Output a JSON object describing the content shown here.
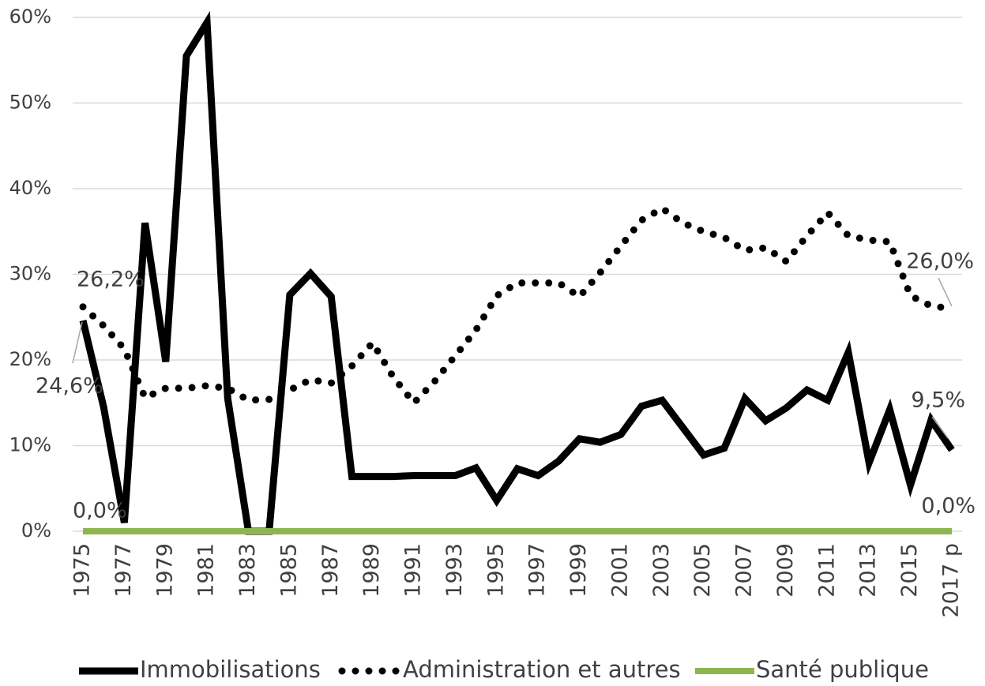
{
  "chart_data": {
    "type": "line",
    "categories": [
      "1975",
      null,
      "1977",
      null,
      "1979",
      null,
      "1981",
      null,
      "1983",
      null,
      "1985",
      null,
      "1987",
      null,
      "1989",
      null,
      "1991",
      null,
      "1993",
      null,
      "1995",
      null,
      "1997",
      null,
      "1999",
      null,
      "2001",
      null,
      "2003",
      null,
      "2005",
      null,
      "2007",
      null,
      "2009",
      null,
      "2011",
      null,
      "2013",
      null,
      "2015",
      null,
      "2017 p"
    ],
    "series": [
      {
        "name": "Immobilisations",
        "color": "#000000",
        "style": "solid",
        "values": [
          24.6,
          14.5,
          1.0,
          36.0,
          19.8,
          55.5,
          59.4,
          15.5,
          0,
          0,
          27.6,
          30.1,
          27.4,
          6.4,
          6.4,
          6.4,
          6.5,
          6.5,
          6.5,
          7.4,
          3.6,
          7.3,
          6.5,
          8.2,
          10.8,
          10.4,
          11.3,
          14.6,
          15.3,
          12.1,
          8.9,
          9.7,
          15.5,
          12.9,
          14.4,
          16.5,
          15.3,
          20.9,
          8.0,
          14.2,
          5.4,
          13.0,
          9.5
        ],
        "value_labels": [
          "24,6%",
          null,
          null,
          null,
          null,
          null,
          null,
          null,
          null,
          null,
          null,
          null,
          null,
          null,
          null,
          null,
          null,
          null,
          null,
          null,
          null,
          null,
          null,
          null,
          null,
          null,
          null,
          null,
          null,
          null,
          null,
          null,
          null,
          null,
          null,
          null,
          null,
          null,
          null,
          null,
          null,
          null,
          "9,5%"
        ]
      },
      {
        "name": "Administration et autres",
        "color": "#000000",
        "style": "dotted",
        "values": [
          26.2,
          24.0,
          21.3,
          15.6,
          16.7,
          16.7,
          17.0,
          16.7,
          15.3,
          15.4,
          16.5,
          17.7,
          17.3,
          19.3,
          22.0,
          18.0,
          15.0,
          17.5,
          20.5,
          23.5,
          27.5,
          29.0,
          29.0,
          29.0,
          27.4,
          30.2,
          33.3,
          36.3,
          37.7,
          36.0,
          35.0,
          34.3,
          32.8,
          33.1,
          31.5,
          34.5,
          37.2,
          34.5,
          34.0,
          33.8,
          27.5,
          26.3,
          26.0
        ],
        "value_labels": [
          "26,2%",
          null,
          null,
          null,
          null,
          null,
          null,
          null,
          null,
          null,
          null,
          null,
          null,
          null,
          null,
          null,
          null,
          null,
          null,
          null,
          null,
          null,
          null,
          null,
          null,
          null,
          null,
          null,
          null,
          null,
          null,
          null,
          null,
          null,
          null,
          null,
          null,
          null,
          null,
          null,
          null,
          null,
          "26,0%"
        ]
      },
      {
        "name": "Santé publique",
        "color": "#8db650",
        "style": "solid",
        "values": [
          0,
          0,
          0,
          0,
          0,
          0,
          0,
          0,
          0,
          0,
          0,
          0,
          0,
          0,
          0,
          0,
          0,
          0,
          0,
          0,
          0,
          0,
          0,
          0,
          0,
          0,
          0,
          0,
          0,
          0,
          0,
          0,
          0,
          0,
          0,
          0,
          0,
          0,
          0,
          0,
          0,
          0,
          0
        ],
        "value_labels": [
          "0,0%",
          null,
          null,
          null,
          null,
          null,
          null,
          null,
          null,
          null,
          null,
          null,
          null,
          null,
          null,
          null,
          null,
          null,
          null,
          null,
          null,
          null,
          null,
          null,
          null,
          null,
          null,
          null,
          null,
          null,
          null,
          null,
          null,
          null,
          null,
          null,
          null,
          null,
          null,
          null,
          null,
          null,
          "0,0%"
        ]
      }
    ],
    "ylim": [
      0,
      60
    ],
    "yticks": [
      {
        "value": 0,
        "label": "0%"
      },
      {
        "value": 10,
        "label": "10%"
      },
      {
        "value": 20,
        "label": "20%"
      },
      {
        "value": 30,
        "label": "30%"
      },
      {
        "value": 40,
        "label": "40%"
      },
      {
        "value": 50,
        "label": "50%"
      },
      {
        "value": 60,
        "label": "60%"
      }
    ],
    "grid": true,
    "legend": "bottom"
  }
}
